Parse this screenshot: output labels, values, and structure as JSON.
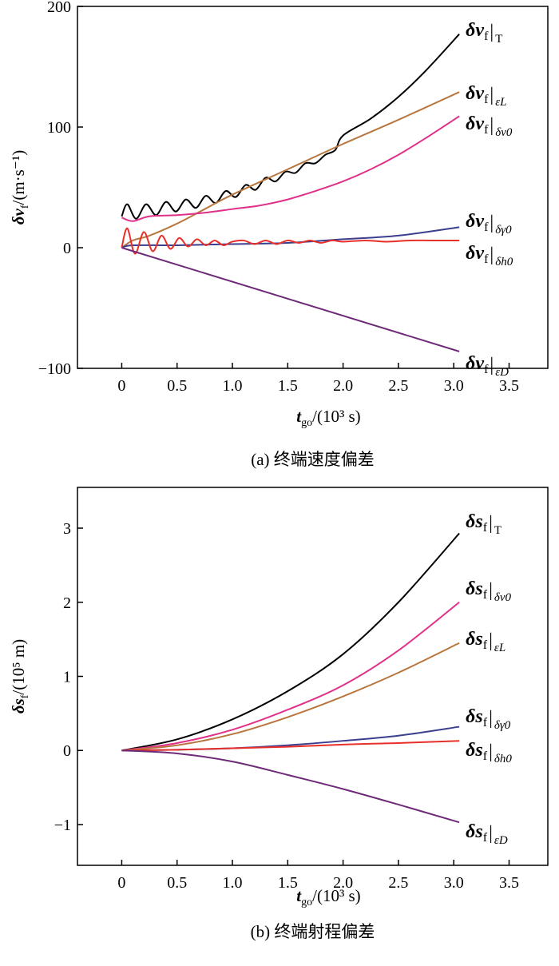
{
  "chart_data": [
    {
      "type": "line",
      "caption": "(a) 终端速度偏差",
      "xlabel": {
        "main": "t",
        "sub": "go",
        "rest": "/(10³ s)"
      },
      "ylabel": {
        "main": "δv",
        "sub": "f",
        "rest": "/(m·s⁻¹)"
      },
      "xlim": [
        -0.4,
        3.85
      ],
      "ylim": [
        -100,
        200
      ],
      "xticks": [
        "0",
        "0.5",
        "1.0",
        "1.5",
        "2.0",
        "2.5",
        "3.0",
        "3.5"
      ],
      "xtick_values": [
        0,
        0.5,
        1.0,
        1.5,
        2.0,
        2.5,
        3.0,
        3.5
      ],
      "yticks": [
        "−100",
        "0",
        "100",
        "200"
      ],
      "ytick_values": [
        -100,
        0,
        100,
        200
      ],
      "grid": false,
      "series": [
        {
          "label": {
            "main": "δv",
            "sub": "f",
            "cond": "T"
          },
          "color": "#000000",
          "x": [
            0,
            0.05,
            0.13,
            0.22,
            0.31,
            0.4,
            0.49,
            0.58,
            0.67,
            0.76,
            0.85,
            0.94,
            1.03,
            1.12,
            1.21,
            1.3,
            1.39,
            1.48,
            1.57,
            1.66,
            1.75,
            1.84,
            1.93,
            2.0,
            2.25,
            2.5,
            2.75,
            3.05
          ],
          "y": [
            26,
            36,
            24,
            36,
            27,
            38,
            30,
            40,
            33,
            43,
            37,
            47,
            42,
            52,
            48,
            58,
            55,
            63,
            62,
            70,
            70,
            77,
            81,
            93,
            107,
            125,
            147,
            177
          ]
        },
        {
          "label": {
            "main": "δv",
            "sub": "f",
            "cond": "εL"
          },
          "color": "#b8763e",
          "x": [
            0,
            0.1,
            0.25,
            0.5,
            0.75,
            1,
            1.5,
            2,
            2.5,
            3.05
          ],
          "y": [
            0,
            6,
            10,
            20,
            32,
            44,
            65,
            86,
            106,
            129
          ]
        },
        {
          "label": {
            "main": "δv",
            "sub": "f",
            "cond": "δv0"
          },
          "color": "#e0308a",
          "x": [
            0,
            0.1,
            0.25,
            0.5,
            0.75,
            1,
            1.25,
            1.5,
            1.75,
            2,
            2.25,
            2.5,
            2.75,
            3.05
          ],
          "y": [
            25,
            22,
            26,
            27,
            29,
            32,
            35,
            40,
            47,
            55,
            65,
            77,
            91,
            109
          ]
        },
        {
          "label": {
            "main": "δv",
            "sub": "f",
            "cond": "δγ0"
          },
          "color": "#3a3f8f",
          "x": [
            0,
            0.1,
            0.5,
            1,
            1.5,
            2,
            2.5,
            3.05
          ],
          "y": [
            0,
            2,
            2,
            3,
            4,
            7,
            10,
            17
          ]
        },
        {
          "label": {
            "main": "δv",
            "sub": "f",
            "cond": "δh0"
          },
          "color": "#e8302a",
          "x": [
            0,
            0.05,
            0.12,
            0.2,
            0.28,
            0.36,
            0.44,
            0.52,
            0.6,
            0.68,
            0.76,
            0.84,
            0.92,
            1.0,
            1.1,
            1.2,
            1.3,
            1.4,
            1.5,
            1.6,
            1.7,
            1.8,
            1.9,
            2.0,
            2.2,
            2.4,
            2.6,
            2.8,
            3.05
          ],
          "y": [
            0,
            16,
            -5,
            13,
            -3,
            10,
            -1,
            8,
            1,
            7,
            2,
            6,
            2,
            5,
            6,
            3,
            6,
            3,
            6,
            4,
            6,
            4,
            6,
            5,
            6,
            5,
            6,
            6,
            6
          ]
        },
        {
          "label": {
            "main": "δv",
            "sub": "f",
            "cond": "εD"
          },
          "color": "#6e2a78",
          "x": [
            0,
            3.05
          ],
          "y": [
            0,
            -86
          ]
        }
      ]
    },
    {
      "type": "line",
      "caption": "(b) 终端射程偏差",
      "xlabel": {
        "main": "t",
        "sub": "go",
        "rest": "/(10³ s)"
      },
      "ylabel": {
        "main": "δs",
        "sub": "f",
        "rest": "/(10⁵ m)"
      },
      "xlim": [
        -0.4,
        3.85
      ],
      "ylim": [
        -1.55,
        3.55
      ],
      "xticks": [
        "0",
        "0.5",
        "1.0",
        "1.5",
        "2.0",
        "2.5",
        "3.0",
        "3.5"
      ],
      "xtick_values": [
        0,
        0.5,
        1.0,
        1.5,
        2.0,
        2.5,
        3.0,
        3.5
      ],
      "yticks": [
        "−1",
        "0",
        "1",
        "2",
        "3"
      ],
      "ytick_values": [
        -1,
        0,
        1,
        2,
        3
      ],
      "grid": false,
      "series": [
        {
          "label": {
            "main": "δs",
            "sub": "f",
            "cond": "T"
          },
          "color": "#000000",
          "x": [
            0,
            0.5,
            1,
            1.5,
            2,
            2.5,
            3.05
          ],
          "y": [
            0,
            0.15,
            0.42,
            0.8,
            1.3,
            2.0,
            2.93
          ]
        },
        {
          "label": {
            "main": "δs",
            "sub": "f",
            "cond": "δv0"
          },
          "color": "#e0308a",
          "x": [
            0,
            0.5,
            1,
            1.5,
            2,
            2.5,
            3.05
          ],
          "y": [
            0,
            0.1,
            0.28,
            0.55,
            0.88,
            1.35,
            2.0
          ]
        },
        {
          "label": {
            "main": "δs",
            "sub": "f",
            "cond": "εL"
          },
          "color": "#b8763e",
          "x": [
            0,
            0.5,
            1,
            1.5,
            2,
            2.5,
            3.05
          ],
          "y": [
            0,
            0.07,
            0.22,
            0.45,
            0.73,
            1.05,
            1.45
          ]
        },
        {
          "label": {
            "main": "δs",
            "sub": "f",
            "cond": "δγ0"
          },
          "color": "#3a3f8f",
          "x": [
            0,
            0.5,
            1,
            1.5,
            2,
            2.5,
            3.05
          ],
          "y": [
            0,
            0.01,
            0.03,
            0.07,
            0.13,
            0.2,
            0.32
          ]
        },
        {
          "label": {
            "main": "δs",
            "sub": "f",
            "cond": "δh0"
          },
          "color": "#e8302a",
          "x": [
            0,
            0.5,
            1,
            1.5,
            2,
            2.5,
            3.05
          ],
          "y": [
            0,
            0.01,
            0.03,
            0.05,
            0.08,
            0.1,
            0.13
          ]
        },
        {
          "label": {
            "main": "δs",
            "sub": "f",
            "cond": "εD"
          },
          "color": "#6e2a78",
          "x": [
            0,
            0.5,
            1,
            1.5,
            2,
            2.5,
            3.05
          ],
          "y": [
            0,
            -0.04,
            -0.15,
            -0.33,
            -0.52,
            -0.73,
            -0.97
          ]
        }
      ]
    }
  ]
}
